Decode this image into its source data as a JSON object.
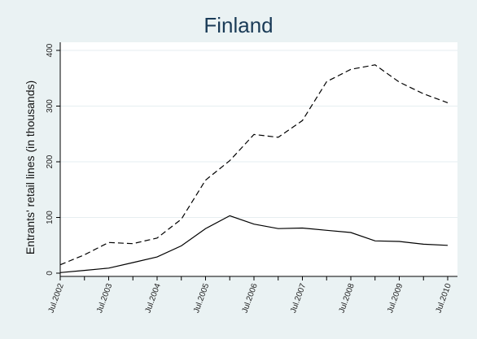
{
  "chart_data": {
    "type": "line",
    "title": "Finland",
    "xlabel": "",
    "ylabel": "Entrants' retail lines (in thousands)",
    "x_tick_labels": [
      "Jul.2002",
      "Jul.2003",
      "Jul.2004",
      "Jul.2005",
      "Jul.2006",
      "Jul.2007",
      "Jul.2008",
      "Jul.2009",
      "Jul.2010"
    ],
    "y_ticks": [
      0,
      100,
      200,
      300,
      400
    ],
    "ylim": [
      0,
      400
    ],
    "xlim": [
      2002.5,
      2010.5
    ],
    "grid": "horizontal",
    "series": [
      {
        "style": "dashed",
        "x": [
          2002.5,
          2003.0,
          2003.5,
          2004.0,
          2004.5,
          2005.0,
          2005.5,
          2006.0,
          2006.5,
          2007.0,
          2007.5,
          2008.0,
          2008.5,
          2009.0,
          2009.5,
          2010.0,
          2010.5
        ],
        "values": [
          15,
          33,
          55,
          53,
          63,
          97,
          167,
          202,
          249,
          244,
          274,
          344,
          366,
          374,
          343,
          322,
          306
        ]
      },
      {
        "style": "solid",
        "x": [
          2002.5,
          2003.0,
          2003.5,
          2004.0,
          2004.5,
          2005.0,
          2005.5,
          2006.0,
          2006.5,
          2007.0,
          2007.5,
          2008.0,
          2008.5,
          2009.0,
          2009.5,
          2010.0,
          2010.5
        ],
        "values": [
          1,
          5,
          9,
          19,
          29,
          49,
          80,
          103,
          88,
          80,
          81,
          77,
          73,
          58,
          57,
          52,
          50
        ]
      }
    ]
  }
}
